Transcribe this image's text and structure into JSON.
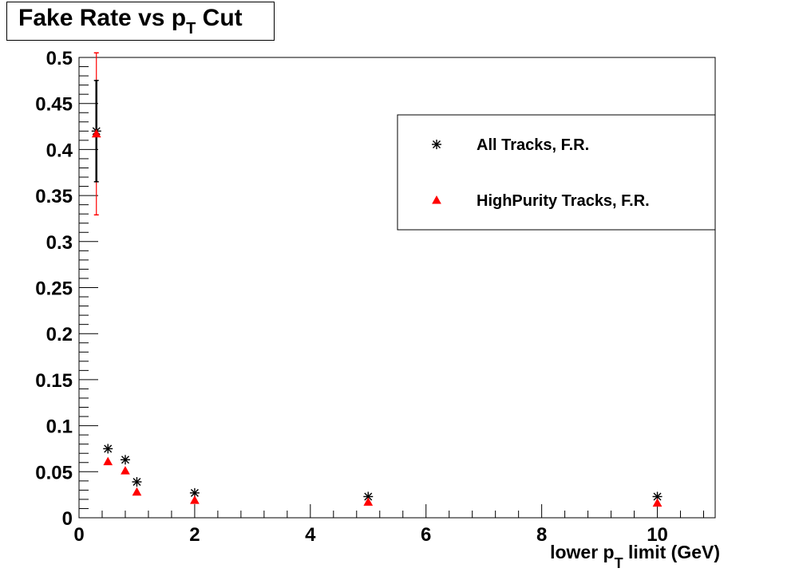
{
  "title": {
    "main": "Fake Rate vs p",
    "sub": "T",
    "tail": " Cut"
  },
  "colors": {
    "all_tracks": "#000000",
    "high_purity": "#ff0000"
  },
  "chart_data": {
    "type": "scatter",
    "xlabel": {
      "pre": "lower p",
      "sub": "T",
      "post": " limit (GeV)"
    },
    "ylabel": "",
    "xlim": [
      0,
      11
    ],
    "ylim": [
      0,
      0.5
    ],
    "x_ticks": [
      "0",
      "2",
      "4",
      "6",
      "8",
      "10"
    ],
    "y_ticks": [
      "0",
      "0.05",
      "0.1",
      "0.15",
      "0.2",
      "0.25",
      "0.3",
      "0.35",
      "0.4",
      "0.45",
      "0.5"
    ],
    "grid": false,
    "legend_position": "top-right",
    "series": [
      {
        "name": "All Tracks, F.R.",
        "marker": "star",
        "color": "#000000",
        "points": [
          {
            "x": 0.3,
            "y": 0.42,
            "err": 0.055
          },
          {
            "x": 0.5,
            "y": 0.075,
            "err": 0
          },
          {
            "x": 0.8,
            "y": 0.063,
            "err": 0
          },
          {
            "x": 1.0,
            "y": 0.039,
            "err": 0
          },
          {
            "x": 2.0,
            "y": 0.027,
            "err": 0
          },
          {
            "x": 5.0,
            "y": 0.023,
            "err": 0
          },
          {
            "x": 10.0,
            "y": 0.023,
            "err": 0
          }
        ]
      },
      {
        "name": "HighPurity Tracks, F.R.",
        "marker": "triangle",
        "color": "#ff0000",
        "points": [
          {
            "x": 0.3,
            "y": 0.417,
            "err": 0.088
          },
          {
            "x": 0.5,
            "y": 0.061,
            "err": 0
          },
          {
            "x": 0.8,
            "y": 0.051,
            "err": 0
          },
          {
            "x": 1.0,
            "y": 0.028,
            "err": 0
          },
          {
            "x": 2.0,
            "y": 0.019,
            "err": 0
          },
          {
            "x": 5.0,
            "y": 0.017,
            "err": 0
          },
          {
            "x": 10.0,
            "y": 0.016,
            "err": 0
          }
        ]
      }
    ]
  }
}
